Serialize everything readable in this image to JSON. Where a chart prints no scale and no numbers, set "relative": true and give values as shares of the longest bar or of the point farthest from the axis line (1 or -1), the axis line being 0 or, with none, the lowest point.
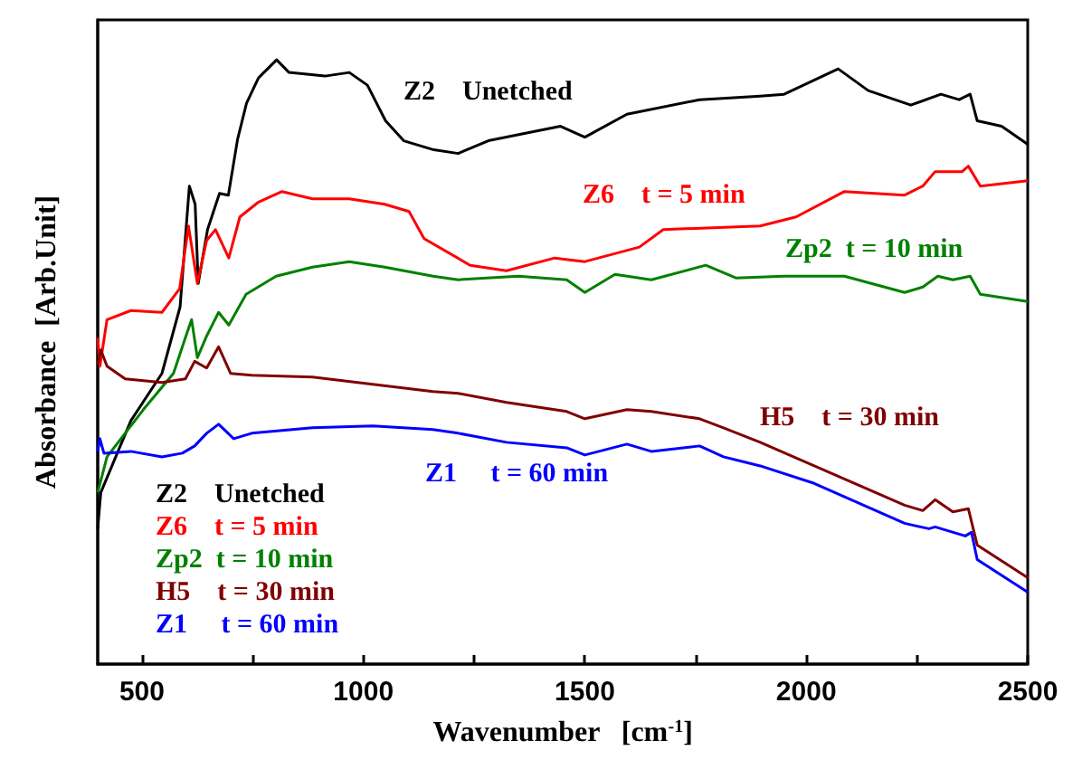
{
  "chart_data": {
    "type": "line",
    "relative": true,
    "xlabel": "Wavenumber   [cm$^{-1}$]",
    "ylabel": "Absorbance  [Arb.Unit]",
    "xlim": [
      400,
      2500
    ],
    "xticks": [
      500,
      {
        "value": 750,
        "label": null
      },
      1000,
      {
        "value": 1250,
        "label": null
      },
      1500,
      {
        "value": 1750,
        "label": null
      },
      2000,
      {
        "value": 2250,
        "label": null
      },
      2500
    ],
    "grid": false,
    "legend": "bottom left",
    "marker": "none",
    "line_style": "solid",
    "annotations": [
      "Z2    Unetched",
      "Z6    t = 5 min",
      "Zp2  t = 10 min",
      "H5    t = 30 min",
      "Z1     t = 60 min"
    ],
    "series": [
      {
        "name": "Z2    Unetched",
        "color": "#000000",
        "x": [
          400,
          407,
          475,
          545,
          586,
          607,
          620,
          627,
          648,
          675,
          695,
          716,
          736,
          763,
          804,
          832,
          913,
          968,
          1009,
          1050,
          1091,
          1159,
          1214,
          1282,
          1445,
          1500,
          1595,
          1759,
          1896,
          1950,
          2072,
          2140,
          2236,
          2304,
          2345,
          2370,
          2386,
          2441,
          2500
        ],
        "values": [
          0.224,
          0.284,
          0.403,
          0.481,
          0.591,
          0.791,
          0.761,
          0.63,
          0.719,
          0.779,
          0.776,
          0.869,
          0.928,
          0.97,
          1.0,
          0.979,
          0.973,
          0.979,
          0.958,
          0.899,
          0.866,
          0.851,
          0.845,
          0.866,
          0.89,
          0.872,
          0.91,
          0.934,
          0.94,
          0.943,
          0.985,
          0.949,
          0.925,
          0.943,
          0.934,
          0.943,
          0.899,
          0.89,
          0.86
        ]
      },
      {
        "name": "Z6    t = 5 min",
        "color": "#ff0000",
        "x": [
          400,
          405,
          421,
          475,
          545,
          585,
          605,
          625,
          646,
          666,
          696,
          721,
          762,
          816,
          885,
          968,
          1048,
          1103,
          1137,
          1241,
          1323,
          1432,
          1500,
          1623,
          1677,
          1896,
          1977,
          2086,
          2222,
          2263,
          2291,
          2352,
          2366,
          2393,
          2500
        ],
        "values": [
          0.54,
          0.493,
          0.57,
          0.585,
          0.582,
          0.621,
          0.725,
          0.63,
          0.701,
          0.719,
          0.672,
          0.74,
          0.764,
          0.782,
          0.77,
          0.77,
          0.761,
          0.749,
          0.704,
          0.66,
          0.651,
          0.672,
          0.666,
          0.69,
          0.719,
          0.725,
          0.74,
          0.782,
          0.776,
          0.791,
          0.815,
          0.815,
          0.824,
          0.791,
          0.8
        ]
      },
      {
        "name": "Zp2  t = 10 min",
        "color": "#008000",
        "x": [
          400,
          421,
          503,
          571,
          598,
          612,
          625,
          646,
          673,
          696,
          735,
          803,
          885,
          968,
          1048,
          1157,
          1214,
          1350,
          1459,
          1500,
          1568,
          1650,
          1773,
          1841,
          1950,
          2086,
          2222,
          2263,
          2297,
          2331,
          2370,
          2393,
          2500
        ],
        "values": [
          0.284,
          0.343,
          0.421,
          0.481,
          0.54,
          0.57,
          0.507,
          0.543,
          0.582,
          0.561,
          0.612,
          0.642,
          0.657,
          0.666,
          0.657,
          0.642,
          0.636,
          0.642,
          0.636,
          0.615,
          0.645,
          0.636,
          0.66,
          0.639,
          0.642,
          0.642,
          0.615,
          0.624,
          0.642,
          0.636,
          0.642,
          0.612,
          0.6
        ]
      },
      {
        "name": "H5    t = 30 min",
        "color": "#800000",
        "x": [
          400,
          407,
          421,
          462,
          545,
          598,
          619,
          646,
          673,
          700,
          748,
          885,
          1021,
          1157,
          1214,
          1323,
          1459,
          1500,
          1595,
          1650,
          1759,
          1813,
          1896,
          2018,
          2222,
          2263,
          2291,
          2331,
          2366,
          2386,
          2500
        ],
        "values": [
          0.496,
          0.52,
          0.493,
          0.472,
          0.466,
          0.472,
          0.501,
          0.49,
          0.525,
          0.481,
          0.478,
          0.475,
          0.463,
          0.451,
          0.448,
          0.433,
          0.418,
          0.406,
          0.421,
          0.418,
          0.406,
          0.391,
          0.367,
          0.328,
          0.263,
          0.254,
          0.272,
          0.252,
          0.257,
          0.197,
          0.143
        ]
      },
      {
        "name": "Z1     t = 60 min",
        "color": "#0000ff",
        "x": [
          400,
          405,
          414,
          475,
          545,
          591,
          619,
          646,
          673,
          707,
          748,
          885,
          1021,
          1157,
          1214,
          1323,
          1459,
          1500,
          1595,
          1650,
          1759,
          1813,
          1896,
          2018,
          2222,
          2277,
          2291,
          2359,
          2373,
          2386,
          2500
        ],
        "values": [
          0.352,
          0.373,
          0.349,
          0.352,
          0.343,
          0.349,
          0.361,
          0.382,
          0.397,
          0.373,
          0.382,
          0.391,
          0.394,
          0.388,
          0.382,
          0.367,
          0.358,
          0.346,
          0.364,
          0.352,
          0.361,
          0.343,
          0.328,
          0.299,
          0.233,
          0.224,
          0.227,
          0.212,
          0.218,
          0.173,
          0.119
        ]
      }
    ]
  }
}
